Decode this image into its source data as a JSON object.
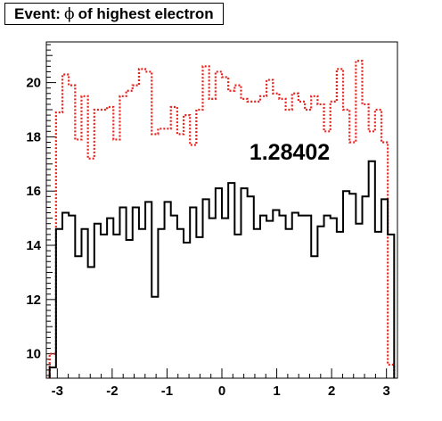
{
  "title": {
    "prefix": "Event:",
    "symbol": "ϕ",
    "suffix": "of highest electron"
  },
  "chart_data": {
    "type": "line",
    "style": "step histogram",
    "xlim": [
      -3.2,
      3.2
    ],
    "ylim": [
      9.1,
      21.5
    ],
    "x_ticks": [
      -3,
      -2,
      -1,
      0,
      1,
      2,
      3
    ],
    "x_tick_labels": [
      "-3",
      "-2",
      "-1",
      "0",
      "1",
      "2",
      "3"
    ],
    "y_ticks": [
      10,
      12,
      14,
      16,
      18,
      20
    ],
    "y_tick_labels": [
      "10",
      "12",
      "14",
      "16",
      "18",
      "20"
    ],
    "annotation": "1.28402",
    "grid": false,
    "bin_edges_range": [
      -3.14,
      3.14
    ],
    "series": [
      {
        "style": "red dotted",
        "color": "#e8231e",
        "values": [
          10.0,
          18.9,
          20.3,
          19.9,
          17.9,
          19.5,
          17.2,
          19.0,
          19.0,
          19.1,
          17.9,
          19.5,
          19.7,
          19.9,
          20.5,
          20.4,
          18.1,
          18.3,
          18.3,
          19.1,
          18.1,
          18.8,
          17.7,
          19.0,
          20.6,
          19.4,
          20.4,
          20.2,
          19.7,
          19.9,
          19.4,
          19.3,
          19.3,
          19.5,
          20.1,
          19.6,
          19.4,
          19.0,
          19.6,
          19.3,
          19.0,
          19.5,
          19.2,
          18.2,
          19.3,
          20.5,
          19.0,
          17.8,
          20.8,
          19.2,
          18.2,
          19.0,
          17.8,
          9.6
        ]
      },
      {
        "style": "black solid",
        "color": "#000000",
        "values": [
          9.5,
          14.6,
          15.2,
          15.1,
          13.6,
          14.6,
          13.2,
          14.8,
          14.4,
          15.0,
          14.4,
          15.4,
          14.2,
          15.4,
          14.6,
          15.6,
          12.1,
          14.6,
          15.6,
          15.1,
          14.6,
          14.1,
          15.4,
          14.3,
          15.7,
          15.0,
          16.1,
          15.0,
          16.3,
          14.4,
          16.1,
          15.8,
          14.6,
          15.1,
          14.9,
          15.3,
          15.1,
          14.6,
          15.2,
          15.1,
          15.1,
          13.6,
          14.7,
          15.1,
          15.0,
          14.5,
          16.0,
          15.9,
          14.8,
          15.8,
          17.1,
          14.5,
          15.7,
          14.4
        ]
      }
    ]
  }
}
